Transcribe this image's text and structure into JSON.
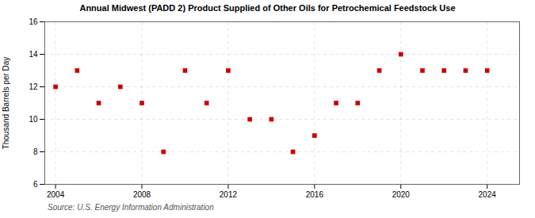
{
  "chart_data": {
    "type": "scatter",
    "title": "Annual Midwest (PADD 2) Product Supplied of Other Oils for Petrochemical Feedstock Use",
    "ylabel": "Thousand Barrels per Day",
    "source": "Source: U.S. Energy Information Administration",
    "x": [
      2004,
      2005,
      2006,
      2007,
      2008,
      2009,
      2010,
      2011,
      2012,
      2013,
      2014,
      2015,
      2016,
      2017,
      2018,
      2019,
      2020,
      2021,
      2022,
      2023,
      2024
    ],
    "values": [
      12,
      13,
      11,
      12,
      11,
      8,
      13,
      11,
      13,
      10,
      10,
      8,
      9,
      11,
      11,
      13,
      14,
      13,
      13,
      13,
      13
    ],
    "color": "#cc0000",
    "marker": "square",
    "xlim": [
      2003.5,
      2025.5
    ],
    "xticks": [
      2004,
      2008,
      2012,
      2016,
      2020,
      2024
    ],
    "ylim": [
      6,
      16
    ],
    "yticks": [
      6,
      8,
      10,
      12,
      14,
      16
    ],
    "grid": true
  }
}
